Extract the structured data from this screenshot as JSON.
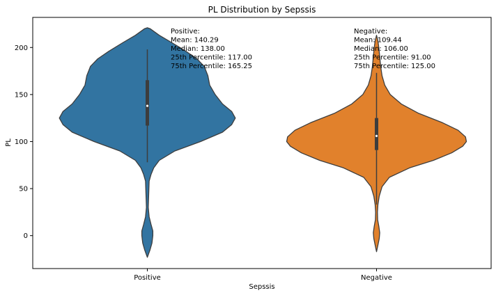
{
  "chart_data": {
    "type": "violin",
    "title": "PL Distribution by Sepssis",
    "xlabel": "Sepssis",
    "ylabel": "PL",
    "ylim": [
      -35,
      232
    ],
    "yticks": [
      0,
      50,
      100,
      150,
      200
    ],
    "categories": [
      "Positive",
      "Negative"
    ],
    "series": [
      {
        "name": "Positive",
        "color": "#3274a1",
        "box": {
          "whisker_low": 78,
          "q1": 117,
          "median": 138,
          "q3": 165.25,
          "whisker_high": 198
        },
        "density": [
          [
            -23,
            0.0
          ],
          [
            -15,
            0.03
          ],
          [
            -8,
            0.05
          ],
          [
            0,
            0.06
          ],
          [
            5,
            0.06
          ],
          [
            12,
            0.04
          ],
          [
            20,
            0.02
          ],
          [
            30,
            0.01
          ],
          [
            45,
            0.015
          ],
          [
            58,
            0.02
          ],
          [
            65,
            0.04
          ],
          [
            72,
            0.07
          ],
          [
            80,
            0.13
          ],
          [
            90,
            0.3
          ],
          [
            100,
            0.58
          ],
          [
            110,
            0.82
          ],
          [
            118,
            0.92
          ],
          [
            125,
            0.96
          ],
          [
            132,
            0.92
          ],
          [
            140,
            0.82
          ],
          [
            150,
            0.74
          ],
          [
            160,
            0.68
          ],
          [
            170,
            0.66
          ],
          [
            180,
            0.62
          ],
          [
            188,
            0.54
          ],
          [
            196,
            0.42
          ],
          [
            205,
            0.27
          ],
          [
            213,
            0.13
          ],
          [
            220,
            0.03
          ],
          [
            221,
            0.0
          ]
        ],
        "annotation": [
          "Positive:",
          "Mean: 140.29",
          "Median: 138.00",
          "25th Percentile: 117.00",
          "75th Percentile: 165.25"
        ]
      },
      {
        "name": "Negative",
        "color": "#e1812c",
        "box": {
          "whisker_low": 33,
          "q1": 91,
          "median": 106,
          "q3": 125,
          "whisker_high": 173
        },
        "density": [
          [
            -17,
            0.0
          ],
          [
            -10,
            0.015
          ],
          [
            -3,
            0.03
          ],
          [
            3,
            0.035
          ],
          [
            10,
            0.025
          ],
          [
            17,
            0.012
          ],
          [
            25,
            0.01
          ],
          [
            33,
            0.015
          ],
          [
            42,
            0.03
          ],
          [
            52,
            0.06
          ],
          [
            62,
            0.14
          ],
          [
            72,
            0.36
          ],
          [
            80,
            0.62
          ],
          [
            88,
            0.82
          ],
          [
            95,
            0.94
          ],
          [
            100,
            0.98
          ],
          [
            105,
            0.97
          ],
          [
            112,
            0.89
          ],
          [
            120,
            0.72
          ],
          [
            130,
            0.46
          ],
          [
            140,
            0.27
          ],
          [
            150,
            0.15
          ],
          [
            160,
            0.09
          ],
          [
            170,
            0.06
          ],
          [
            180,
            0.045
          ],
          [
            190,
            0.035
          ],
          [
            200,
            0.025
          ],
          [
            207,
            0.015
          ],
          [
            213,
            0.0
          ]
        ],
        "annotation": [
          "Negative:",
          "Mean: 109.44",
          "Median: 106.00",
          "25th Percentile: 91.00",
          "75th Percentile: 125.00"
        ]
      }
    ]
  }
}
